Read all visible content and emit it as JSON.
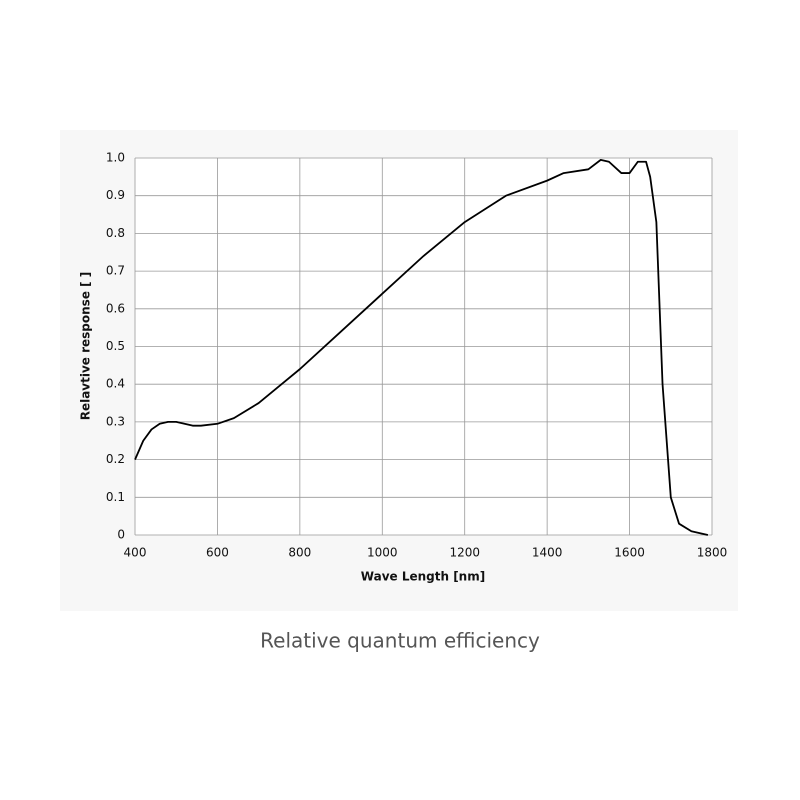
{
  "chart_data": {
    "type": "line",
    "caption": "Relative quantum efficiency",
    "xlabel": "Wave Length [nm]",
    "ylabel": "Relavtive response [ ]",
    "x": [
      400,
      420,
      440,
      460,
      480,
      500,
      520,
      540,
      560,
      600,
      640,
      700,
      800,
      900,
      1000,
      1100,
      1200,
      1300,
      1400,
      1440,
      1500,
      1530,
      1550,
      1580,
      1600,
      1620,
      1640,
      1650,
      1665,
      1680,
      1700,
      1720,
      1750,
      1790
    ],
    "series": [
      {
        "color": "#000000",
        "values": [
          0.2,
          0.25,
          0.28,
          0.295,
          0.3,
          0.3,
          0.295,
          0.29,
          0.29,
          0.295,
          0.31,
          0.35,
          0.44,
          0.54,
          0.64,
          0.74,
          0.83,
          0.9,
          0.94,
          0.96,
          0.97,
          0.995,
          0.99,
          0.96,
          0.96,
          0.99,
          0.99,
          0.95,
          0.83,
          0.4,
          0.1,
          0.03,
          0.01,
          0
        ]
      }
    ],
    "xlim": [
      400,
      1800
    ],
    "xticks": [
      400,
      600,
      800,
      1000,
      1200,
      1400,
      1600,
      1800
    ],
    "ylim": [
      0,
      1
    ],
    "yticks": [
      0,
      0.1,
      0.2,
      0.3,
      0.4,
      0.5,
      0.6,
      0.7,
      0.8,
      0.9,
      {
        "value": 1,
        "label": "1.0"
      }
    ],
    "grid": true
  }
}
